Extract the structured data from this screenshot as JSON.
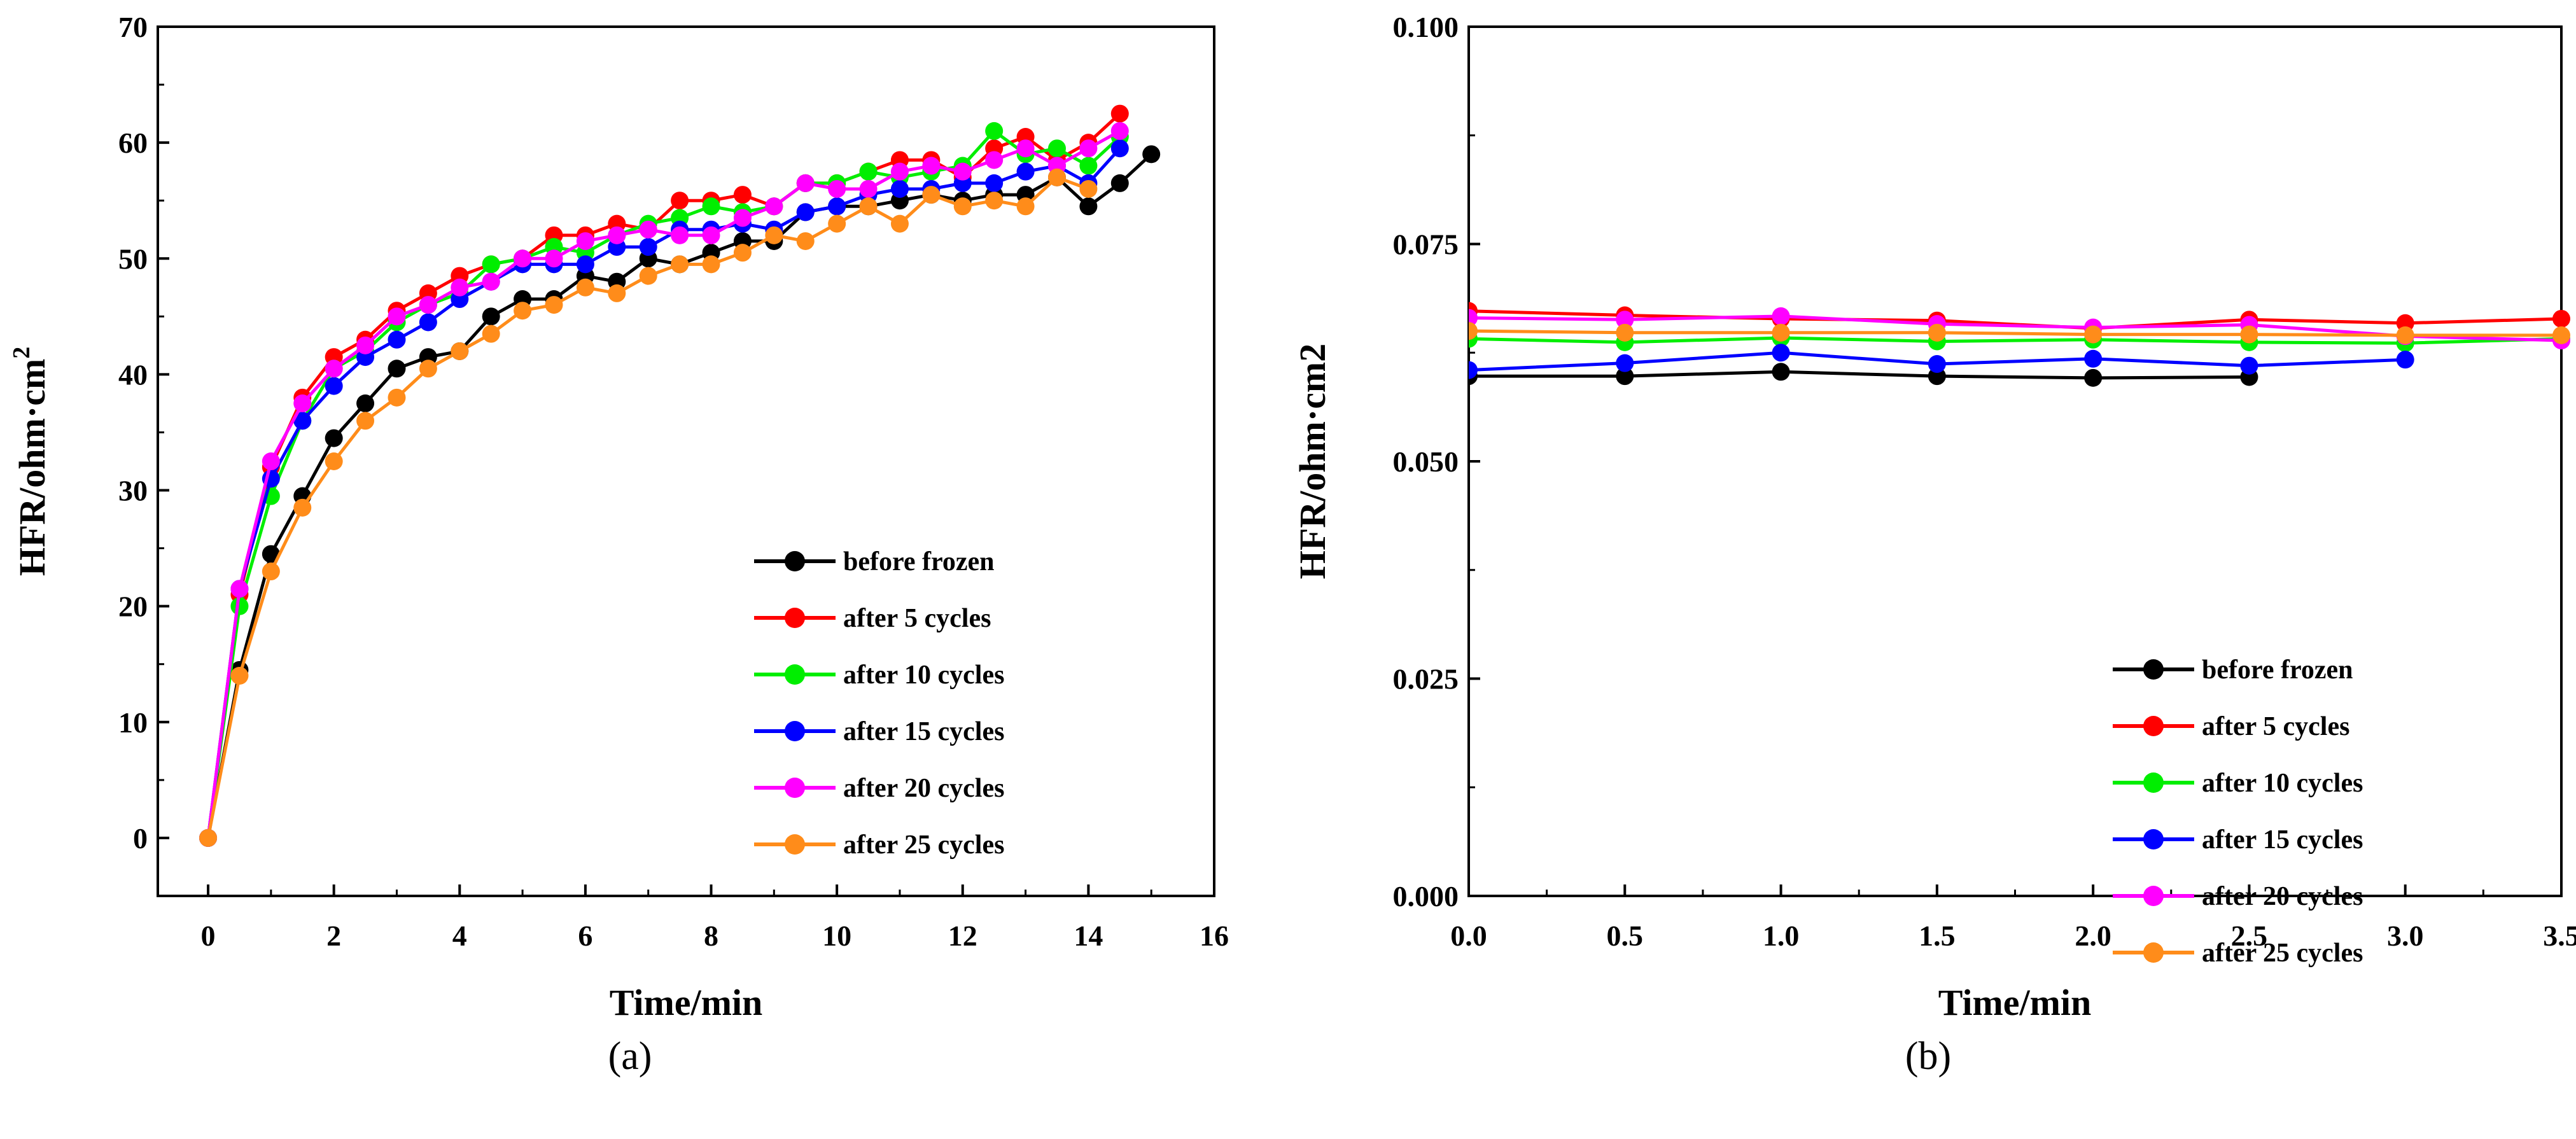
{
  "chart_data": [
    {
      "type": "line",
      "panel": "(a)",
      "title": "",
      "xlabel": "Time/min",
      "ylabel_main": "HFR/ohm·cm",
      "ylabel_sup": "2",
      "xlim": [
        -0.8,
        16
      ],
      "ylim": [
        -5,
        70
      ],
      "xticks": [
        "0",
        "2",
        "4",
        "6",
        "8",
        "10",
        "12",
        "14",
        "16"
      ],
      "yticks": [
        "0",
        "10",
        "20",
        "30",
        "40",
        "50",
        "60",
        "70"
      ],
      "legend_position": "right-middle",
      "series": [
        {
          "name": "before frozen",
          "color": "#000000",
          "x": [
            0,
            0.5,
            1,
            1.5,
            2,
            2.5,
            3,
            3.5,
            4,
            4.5,
            5,
            5.5,
            6,
            6.5,
            7,
            7.5,
            8,
            8.5,
            9,
            9.5,
            10,
            10.5,
            11,
            11.5,
            12,
            12.5,
            13,
            13.5,
            14,
            14.5,
            15
          ],
          "y": [
            0,
            14.5,
            24.5,
            29.5,
            34.5,
            37.5,
            40.5,
            41.5,
            42,
            45,
            46.5,
            46.5,
            48.5,
            48,
            50,
            49.5,
            50.5,
            51.5,
            51.5,
            54,
            54.5,
            54.5,
            55,
            55.5,
            55,
            55.5,
            55.5,
            57,
            54.5,
            56.5,
            59
          ]
        },
        {
          "name": "after 5 cycles",
          "color": "#ff0000",
          "x": [
            0,
            0.5,
            1,
            1.5,
            2,
            2.5,
            3,
            3.5,
            4,
            4.5,
            5,
            5.5,
            6,
            6.5,
            7,
            7.5,
            8,
            8.5,
            9,
            9.5,
            10,
            10.5,
            11,
            11.5,
            12,
            12.5,
            13,
            13.5,
            14,
            14.5
          ],
          "y": [
            0,
            21,
            32,
            38,
            41.5,
            43,
            45.5,
            47,
            48.5,
            49.5,
            50,
            52,
            52,
            53,
            52.5,
            55,
            55,
            55.5,
            54.5,
            56.5,
            56.5,
            57.5,
            58.5,
            58.5,
            57,
            59.5,
            60.5,
            58.5,
            60,
            62.5
          ]
        },
        {
          "name": "after 10 cycles",
          "color": "#00ee00",
          "x": [
            0,
            0.5,
            1,
            1.5,
            2,
            2.5,
            3,
            3.5,
            4,
            4.5,
            5,
            5.5,
            6,
            6.5,
            7,
            7.5,
            8,
            8.5,
            9,
            9.5,
            10,
            10.5,
            11,
            11.5,
            12,
            12.5,
            13,
            13.5,
            14,
            14.5
          ],
          "y": [
            0,
            20,
            29.5,
            36,
            40.5,
            42,
            44.5,
            46,
            47,
            49.5,
            50,
            51,
            50.5,
            52,
            53,
            53.5,
            54.5,
            54,
            54.5,
            56.5,
            56.5,
            57.5,
            57,
            57.5,
            58,
            61,
            59,
            59.5,
            58,
            60.5
          ]
        },
        {
          "name": "after 15 cycles",
          "color": "#0000ff",
          "x": [
            0,
            0.5,
            1,
            1.5,
            2,
            2.5,
            3,
            3.5,
            4,
            4.5,
            5,
            5.5,
            6,
            6.5,
            7,
            7.5,
            8,
            8.5,
            9,
            9.5,
            10,
            10.5,
            11,
            11.5,
            12,
            12.5,
            13,
            13.5,
            14,
            14.5
          ],
          "y": [
            0,
            21.5,
            31,
            36,
            39,
            41.5,
            43,
            44.5,
            46.5,
            48,
            49.5,
            49.5,
            49.5,
            51,
            51,
            52.5,
            52.5,
            53,
            52.5,
            54,
            54.5,
            55.5,
            56,
            56,
            56.5,
            56.5,
            57.5,
            58,
            56.5,
            59.5
          ]
        },
        {
          "name": "after 20 cycles",
          "color": "#ff00ff",
          "x": [
            0,
            0.5,
            1,
            1.5,
            2,
            2.5,
            3,
            3.5,
            4,
            4.5,
            5,
            5.5,
            6,
            6.5,
            7,
            7.5,
            8,
            8.5,
            9,
            9.5,
            10,
            10.5,
            11,
            11.5,
            12,
            12.5,
            13,
            13.5,
            14,
            14.5
          ],
          "y": [
            0,
            21.5,
            32.5,
            37.5,
            40.5,
            42.5,
            45,
            46,
            47.5,
            48,
            50,
            50,
            51.5,
            52,
            52.5,
            52,
            52,
            53.5,
            54.5,
            56.5,
            56,
            56,
            57.5,
            58,
            57.5,
            58.5,
            59.5,
            58,
            59.5,
            61
          ]
        },
        {
          "name": "after 25 cycles",
          "color": "#ff8c1a",
          "x": [
            0,
            0.5,
            1,
            1.5,
            2,
            2.5,
            3,
            3.5,
            4,
            4.5,
            5,
            5.5,
            6,
            6.5,
            7,
            7.5,
            8,
            8.5,
            9,
            9.5,
            10,
            10.5,
            11,
            11.5,
            12,
            12.5,
            13,
            13.5,
            14
          ],
          "y": [
            0,
            14,
            23,
            28.5,
            32.5,
            36,
            38,
            40.5,
            42,
            43.5,
            45.5,
            46,
            47.5,
            47,
            48.5,
            49.5,
            49.5,
            50.5,
            52,
            51.5,
            53,
            54.5,
            53,
            55.5,
            54.5,
            55,
            54.5,
            57,
            56
          ]
        }
      ]
    },
    {
      "type": "line",
      "panel": "(b)",
      "title": "",
      "xlabel": "Time/min",
      "ylabel_main": "HFR/ohm·cm2",
      "xlim": [
        0,
        3.5
      ],
      "ylim": [
        0,
        0.1
      ],
      "xticks": [
        "0.0",
        "0.5",
        "1.0",
        "1.5",
        "2.0",
        "2.5",
        "3.0",
        "3.5"
      ],
      "yticks": [
        "0.000",
        "0.025",
        "0.050",
        "0.075",
        "0.100"
      ],
      "legend_position": "right-middle",
      "series": [
        {
          "name": "before frozen",
          "color": "#000000",
          "x": [
            0,
            0.5,
            1,
            1.5,
            2,
            2.5
          ],
          "y": [
            0.0598,
            0.0598,
            0.0603,
            0.0598,
            0.0596,
            0.0597
          ]
        },
        {
          "name": "after 5 cycles",
          "color": "#ff0000",
          "x": [
            0,
            0.5,
            1,
            1.5,
            2,
            2.5,
            3,
            3.5
          ],
          "y": [
            0.0673,
            0.0668,
            0.0664,
            0.0662,
            0.0653,
            0.0663,
            0.0659,
            0.0664
          ]
        },
        {
          "name": "after 10 cycles",
          "color": "#00ee00",
          "x": [
            0,
            0.5,
            1,
            1.5,
            2,
            2.5,
            3,
            3.5
          ],
          "y": [
            0.0641,
            0.0637,
            0.0642,
            0.0638,
            0.064,
            0.0637,
            0.0636,
            0.0641
          ]
        },
        {
          "name": "after 15 cycles",
          "color": "#0000ff",
          "x": [
            0,
            0.5,
            1,
            1.5,
            2,
            2.5,
            3
          ],
          "y": [
            0.0605,
            0.0613,
            0.0625,
            0.0612,
            0.0618,
            0.061,
            0.0617
          ]
        },
        {
          "name": "after 20 cycles",
          "color": "#ff00ff",
          "x": [
            0,
            0.5,
            1,
            1.5,
            2,
            2.5,
            3,
            3.5
          ],
          "y": [
            0.0665,
            0.0663,
            0.0667,
            0.0658,
            0.0654,
            0.0657,
            0.0644,
            0.0639
          ]
        },
        {
          "name": "after 25 cycles",
          "color": "#ff8c1a",
          "x": [
            0,
            0.5,
            1,
            1.5,
            2,
            2.5,
            3,
            3.5
          ],
          "y": [
            0.065,
            0.0648,
            0.0648,
            0.0648,
            0.0646,
            0.0646,
            0.0645,
            0.0645
          ]
        }
      ]
    }
  ]
}
